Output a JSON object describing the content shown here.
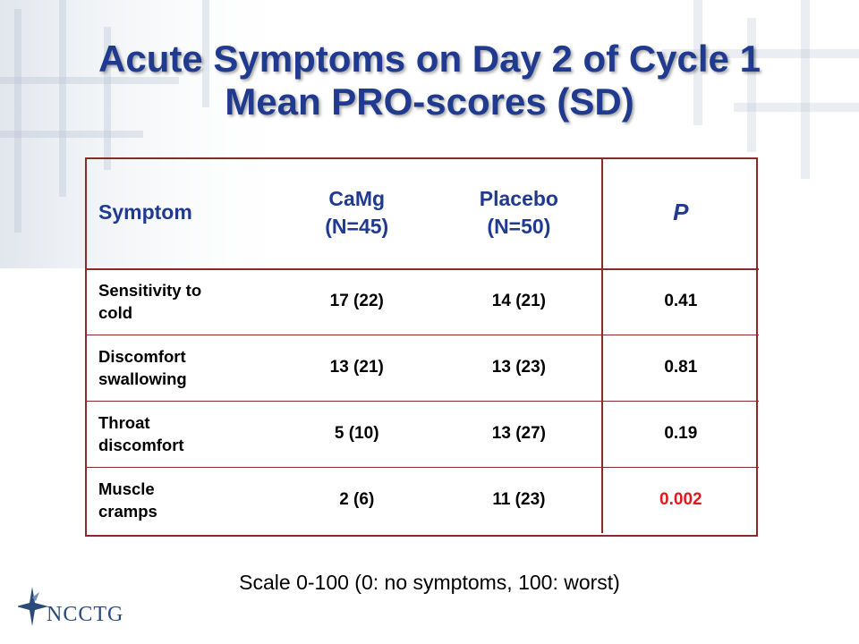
{
  "slide": {
    "title_line1": "Acute Symptoms on Day 2 of Cycle 1",
    "title_line2": "Mean PRO-scores (SD)",
    "scale_note": "Scale 0-100 (0: no symptoms, 100: worst)",
    "logo_text": "NCCTG"
  },
  "table": {
    "headers": {
      "symptom": "Symptom",
      "camg_line1": "CaMg",
      "camg_line2": "(N=45)",
      "placebo_line1": "Placebo",
      "placebo_line2": "(N=50)",
      "p": "P"
    },
    "rows": [
      {
        "symptom_line1": "Sensitivity to",
        "symptom_line2": "cold",
        "camg": "17 (22)",
        "placebo": "14 (21)",
        "p": "0.41"
      },
      {
        "symptom_line1": "Discomfort",
        "symptom_line2": "swallowing",
        "camg": "13 (21)",
        "placebo": "13 (23)",
        "p": "0.81"
      },
      {
        "symptom_line1": "Throat",
        "symptom_line2": "discomfort",
        "camg": "5 (10)",
        "placebo": "13 (27)",
        "p": "0.19"
      },
      {
        "symptom_line1": "Muscle",
        "symptom_line2": "cramps",
        "camg": "2 (6)",
        "placebo": "11 (23)",
        "p": "0.002"
      }
    ],
    "highlight_color": "#e0191f"
  },
  "colors": {
    "title": "#1f3a8f",
    "rule": "#8b2a2a"
  }
}
